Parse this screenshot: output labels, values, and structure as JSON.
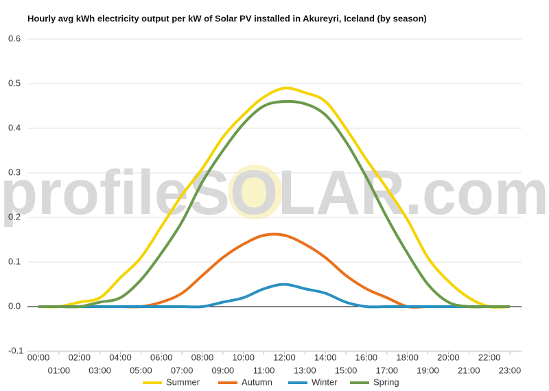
{
  "chart_data": {
    "type": "line",
    "title": "Hourly avg kWh electricity output per kW of Solar PV installed in Akureyri, Iceland (by season)",
    "watermark": "profileSOLAR.com",
    "categories": [
      "00:00",
      "01:00",
      "02:00",
      "03:00",
      "04:00",
      "05:00",
      "06:00",
      "07:00",
      "08:00",
      "09:00",
      "10:00",
      "11:00",
      "12:00",
      "13:00",
      "14:00",
      "15:00",
      "16:00",
      "17:00",
      "18:00",
      "19:00",
      "20:00",
      "21:00",
      "22:00",
      "23:00"
    ],
    "series": [
      {
        "name": "Summer",
        "color": "#f5d400",
        "values": [
          0,
          0,
          0.01,
          0.02,
          0.065,
          0.11,
          0.18,
          0.25,
          0.31,
          0.38,
          0.43,
          0.47,
          0.49,
          0.48,
          0.46,
          0.4,
          0.33,
          0.265,
          0.195,
          0.11,
          0.057,
          0.02,
          0,
          0
        ]
      },
      {
        "name": "Autumn",
        "color": "#e8711d",
        "values": [
          0,
          0,
          0,
          0,
          0,
          0,
          0.01,
          0.03,
          0.07,
          0.11,
          0.14,
          0.16,
          0.16,
          0.14,
          0.11,
          0.07,
          0.04,
          0.02,
          0,
          0,
          0,
          0,
          0,
          0
        ]
      },
      {
        "name": "Winter",
        "color": "#2a90c0",
        "values": [
          0,
          0,
          0,
          0,
          0,
          0,
          0,
          0,
          0,
          0.01,
          0.02,
          0.04,
          0.05,
          0.04,
          0.03,
          0.01,
          0,
          0,
          0,
          0,
          0,
          0,
          0,
          0
        ]
      },
      {
        "name": "Spring",
        "color": "#6a9a4a",
        "values": [
          0,
          0,
          0,
          0.01,
          0.02,
          0.06,
          0.12,
          0.19,
          0.28,
          0.35,
          0.41,
          0.45,
          0.46,
          0.455,
          0.43,
          0.37,
          0.29,
          0.2,
          0.12,
          0.05,
          0.01,
          0,
          0,
          0
        ]
      }
    ],
    "ylim": [
      -0.1,
      0.6
    ],
    "yticks": [
      -0.1,
      {
        "value": 0,
        "label": "0.0"
      },
      0.1,
      0.2,
      0.3,
      0.4,
      0.5,
      0.6
    ],
    "grid": true,
    "legend": "bottom"
  }
}
